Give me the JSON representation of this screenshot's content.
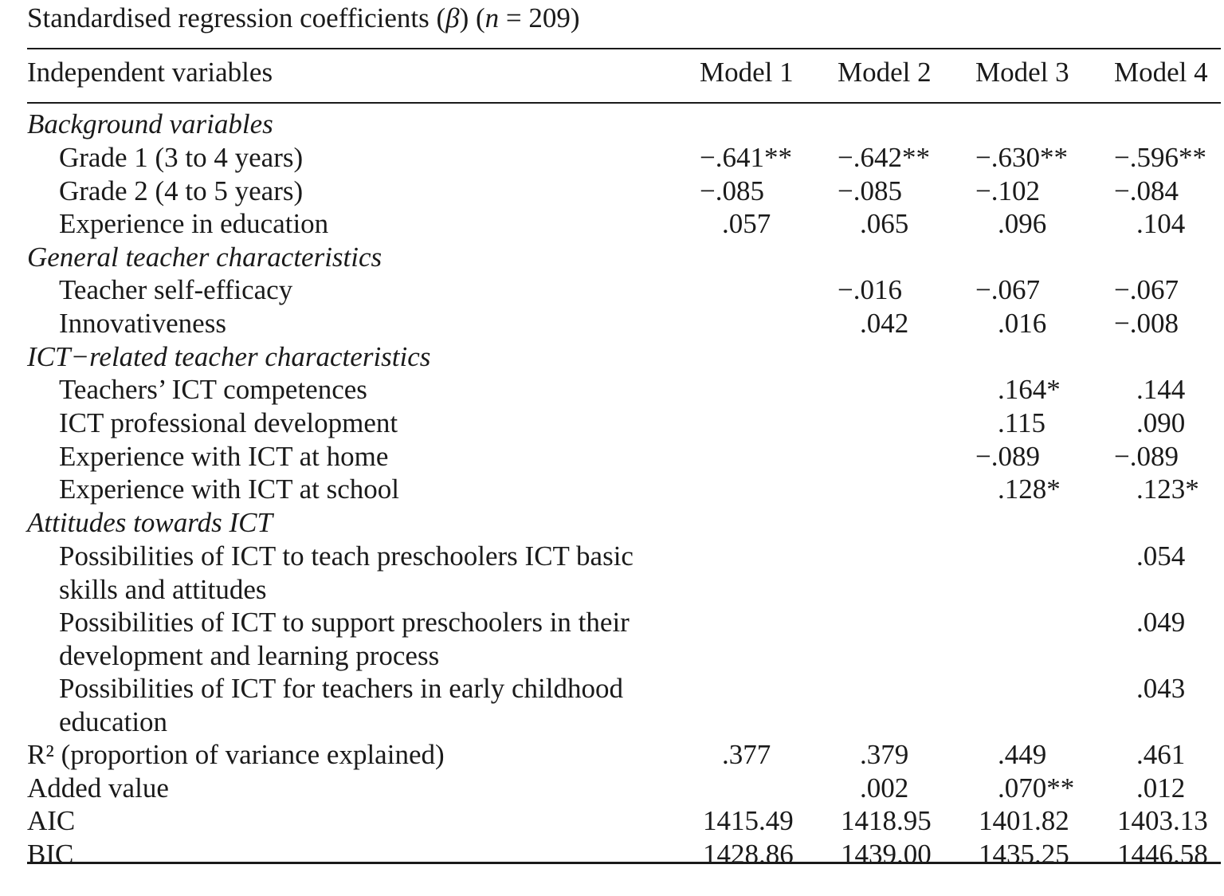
{
  "caption": {
    "prefix": "Standardised regression coefficients (",
    "beta": "β",
    "mid": ") (",
    "n": "n",
    "suffix": " = 209)"
  },
  "header": {
    "variables": "Independent variables",
    "models": [
      "Model 1",
      "Model 2",
      "Model 3",
      "Model 4"
    ]
  },
  "rows": [
    {
      "label": "Background variables",
      "values": [
        "",
        "",
        "",
        ""
      ]
    },
    {
      "label": "Grade 1 (3 to 4 years)",
      "values": [
        "−.641**",
        "−.642**",
        "−.630**",
        "−.596**"
      ]
    },
    {
      "label": "Grade 2 (4 to 5 years)",
      "values": [
        "−.085",
        "−.085",
        "−.102",
        "−.084"
      ]
    },
    {
      "label": "Experience in education",
      "values": [
        ".057",
        ".065",
        ".096",
        ".104"
      ]
    },
    {
      "label": "General teacher characteristics",
      "values": [
        "",
        "",
        "",
        ""
      ]
    },
    {
      "label": "Teacher self-efficacy",
      "values": [
        "",
        "−.016",
        "−.067",
        "−.067"
      ]
    },
    {
      "label": "Innovativeness",
      "values": [
        "",
        ".042",
        ".016",
        "−.008"
      ]
    },
    {
      "label": "ICT−related teacher characteristics",
      "values": [
        "",
        "",
        "",
        ""
      ]
    },
    {
      "label": "Teachers’ ICT competences",
      "values": [
        "",
        "",
        ".164*",
        ".144"
      ]
    },
    {
      "label": "ICT professional development",
      "values": [
        "",
        "",
        ".115",
        ".090"
      ]
    },
    {
      "label": "Experience with ICT at home",
      "values": [
        "",
        "",
        "−.089",
        "−.089"
      ]
    },
    {
      "label": "Experience with ICT at school",
      "values": [
        "",
        "",
        ".128*",
        ".123*"
      ]
    },
    {
      "label": "Attitudes towards ICT",
      "values": [
        "",
        "",
        "",
        ""
      ]
    },
    {
      "label": "Possibilities of ICT to teach preschoolers ICT basic skills and attitudes",
      "values": [
        "",
        "",
        "",
        ".054"
      ]
    },
    {
      "label": "Possibilities of ICT to support preschoolers in their development and learning process",
      "values": [
        "",
        "",
        "",
        ".049"
      ]
    },
    {
      "label": "Possibilities of ICT for teachers in early childhood education",
      "values": [
        "",
        "",
        "",
        ".043"
      ]
    },
    {
      "label": "R² (proportion of variance explained)",
      "values": [
        ".377",
        ".379",
        ".449",
        ".461"
      ]
    },
    {
      "label": "Added value",
      "values": [
        "",
        ".002",
        ".070**",
        ".012"
      ]
    },
    {
      "label": "AIC",
      "values": [
        "1415.49",
        "1418.95",
        "1401.82",
        "1403.13"
      ]
    },
    {
      "label": "BIC",
      "values": [
        "1428.86",
        "1439.00",
        "1435.25",
        "1446.58"
      ]
    }
  ]
}
